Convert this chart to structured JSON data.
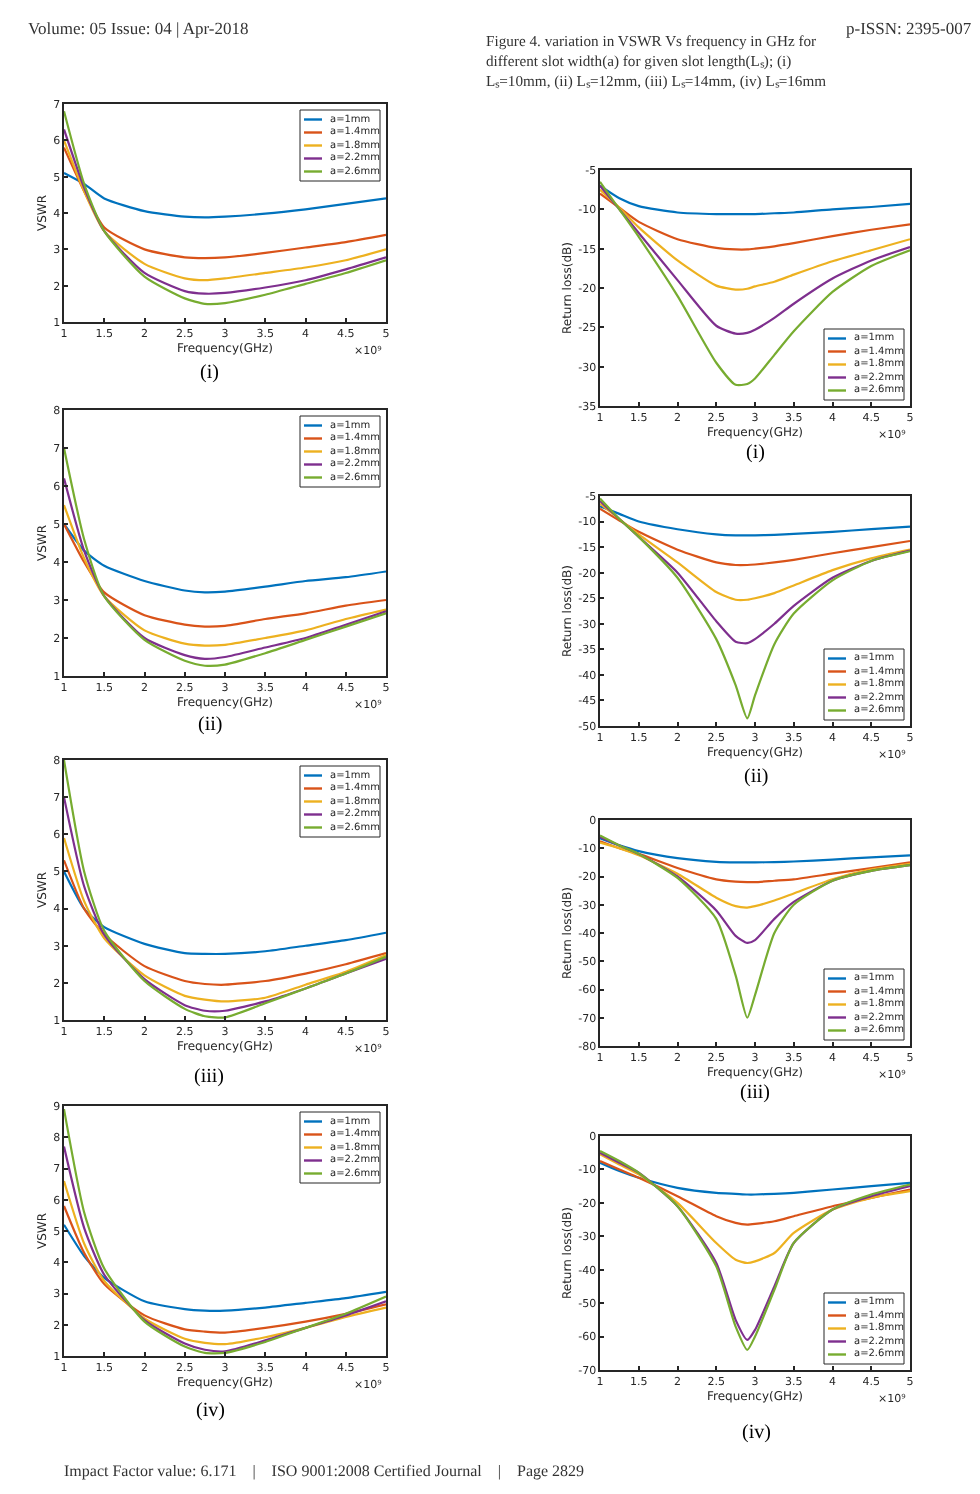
{
  "chart_data": [
    {
      "type": "line",
      "xlabel": "Frequency(GHz)",
      "ylabel": "VSWR",
      "legend": "top right",
      "x": [
        1,
        1.25,
        1.5,
        2,
        2.5,
        2.75,
        3,
        3.5,
        4,
        4.5,
        5
      ],
      "xlim": [
        1,
        5
      ],
      "xticks": [
        1,
        1.5,
        2,
        2.5,
        3,
        3.5,
        4,
        4.5,
        5
      ],
      "ylim": [
        1,
        7
      ],
      "yticks": [
        1,
        2,
        3,
        4,
        5,
        6,
        7
      ],
      "annotations": [
        "×10⁹",
        "(i)",
        "Volume: 05 Issue: 04 | Apr-2018",
        "p-ISSN: 2395-007"
      ],
      "series": [
        {
          "name": "a=1mm",
          "color": "#0072bd",
          "values": [
            5.1,
            4.8,
            4.4,
            4.05,
            3.9,
            3.88,
            3.9,
            3.98,
            4.1,
            4.25,
            4.4
          ]
        },
        {
          "name": "a=1.4mm",
          "color": "#d95319",
          "values": [
            5.8,
            4.6,
            3.6,
            3.0,
            2.78,
            2.76,
            2.78,
            2.9,
            3.05,
            3.2,
            3.4
          ]
        },
        {
          "name": "a=1.8mm",
          "color": "#edb120",
          "values": [
            6.0,
            4.6,
            3.5,
            2.6,
            2.2,
            2.15,
            2.2,
            2.35,
            2.5,
            2.7,
            3.0
          ]
        },
        {
          "name": "a=2.2mm",
          "color": "#7e2f8e",
          "values": [
            6.3,
            4.7,
            3.5,
            2.35,
            1.85,
            1.78,
            1.8,
            1.95,
            2.15,
            2.45,
            2.78
          ]
        },
        {
          "name": "a=2.6mm",
          "color": "#77ac30",
          "values": [
            6.8,
            4.8,
            3.5,
            2.25,
            1.65,
            1.5,
            1.52,
            1.75,
            2.05,
            2.35,
            2.7
          ]
        }
      ]
    },
    {
      "type": "line",
      "xlabel": "Frequency(GHz)",
      "ylabel": "VSWR",
      "legend": "top right",
      "x": [
        1,
        1.25,
        1.5,
        2,
        2.5,
        2.75,
        3,
        3.5,
        4,
        4.5,
        5
      ],
      "xlim": [
        1,
        5
      ],
      "xticks": [
        1,
        1.5,
        2,
        2.5,
        3,
        3.5,
        4,
        4.5,
        5
      ],
      "ylim": [
        1,
        8
      ],
      "yticks": [
        1,
        2,
        3,
        4,
        5,
        6,
        7,
        8
      ],
      "annotations": [
        "×10⁹",
        "(ii)"
      ],
      "series": [
        {
          "name": "a=1mm",
          "color": "#0072bd",
          "values": [
            5.0,
            4.3,
            3.9,
            3.5,
            3.25,
            3.2,
            3.22,
            3.35,
            3.5,
            3.6,
            3.75
          ]
        },
        {
          "name": "a=1.4mm",
          "color": "#d95319",
          "values": [
            5.0,
            4.0,
            3.2,
            2.6,
            2.35,
            2.3,
            2.32,
            2.5,
            2.65,
            2.85,
            3.0
          ]
        },
        {
          "name": "a=1.8mm",
          "color": "#edb120",
          "values": [
            5.5,
            4.1,
            3.1,
            2.2,
            1.85,
            1.8,
            1.82,
            2.0,
            2.2,
            2.5,
            2.75
          ]
        },
        {
          "name": "a=2.2mm",
          "color": "#7e2f8e",
          "values": [
            6.2,
            4.3,
            3.1,
            2.0,
            1.55,
            1.45,
            1.5,
            1.75,
            2.0,
            2.35,
            2.7
          ]
        },
        {
          "name": "a=2.6mm",
          "color": "#77ac30",
          "values": [
            7.0,
            4.6,
            3.1,
            1.95,
            1.4,
            1.27,
            1.3,
            1.6,
            1.95,
            2.3,
            2.65
          ]
        }
      ]
    },
    {
      "type": "line",
      "xlabel": "Frequency(GHz)",
      "ylabel": "VSWR",
      "legend": "top right",
      "x": [
        1,
        1.25,
        1.5,
        2,
        2.5,
        2.75,
        3,
        3.5,
        4,
        4.5,
        5
      ],
      "xlim": [
        1,
        5
      ],
      "xticks": [
        1,
        1.5,
        2,
        2.5,
        3,
        3.5,
        4,
        4.5,
        5
      ],
      "ylim": [
        1,
        8
      ],
      "yticks": [
        1,
        2,
        3,
        4,
        5,
        6,
        7,
        8
      ],
      "annotations": [
        "×10⁹",
        "(iii)"
      ],
      "series": [
        {
          "name": "a=1mm",
          "color": "#0072bd",
          "values": [
            5.0,
            4.0,
            3.5,
            3.05,
            2.8,
            2.78,
            2.78,
            2.85,
            3.0,
            3.15,
            3.35
          ]
        },
        {
          "name": "a=1.4mm",
          "color": "#d95319",
          "values": [
            5.3,
            4.0,
            3.3,
            2.45,
            2.05,
            1.97,
            1.95,
            2.05,
            2.25,
            2.5,
            2.8
          ]
        },
        {
          "name": "a=1.8mm",
          "color": "#edb120",
          "values": [
            5.9,
            4.2,
            3.2,
            2.2,
            1.65,
            1.55,
            1.5,
            1.6,
            1.95,
            2.3,
            2.75
          ]
        },
        {
          "name": "a=2.2mm",
          "color": "#7e2f8e",
          "values": [
            7.0,
            4.6,
            3.3,
            2.1,
            1.4,
            1.25,
            1.25,
            1.5,
            1.85,
            2.25,
            2.65
          ]
        },
        {
          "name": "a=2.6mm",
          "color": "#77ac30",
          "values": [
            8.0,
            5.0,
            3.4,
            2.05,
            1.3,
            1.1,
            1.07,
            1.45,
            1.85,
            2.25,
            2.7
          ]
        }
      ]
    },
    {
      "type": "line",
      "xlabel": "Frequency(GHz)",
      "ylabel": "VSWR",
      "legend": "top right",
      "x": [
        1,
        1.25,
        1.5,
        2,
        2.5,
        2.75,
        3,
        3.5,
        4,
        4.5,
        5
      ],
      "xlim": [
        1,
        5
      ],
      "xticks": [
        1,
        1.5,
        2,
        2.5,
        3,
        3.5,
        4,
        4.5,
        5
      ],
      "ylim": [
        1,
        9
      ],
      "yticks": [
        1,
        2,
        3,
        4,
        5,
        6,
        7,
        8,
        9
      ],
      "annotations": [
        "×10⁹",
        "(iv)"
      ],
      "series": [
        {
          "name": "a=1mm",
          "color": "#0072bd",
          "values": [
            5.2,
            4.2,
            3.5,
            2.75,
            2.5,
            2.45,
            2.45,
            2.55,
            2.7,
            2.85,
            3.05
          ]
        },
        {
          "name": "a=1.4mm",
          "color": "#d95319",
          "values": [
            5.8,
            4.3,
            3.3,
            2.3,
            1.85,
            1.78,
            1.75,
            1.9,
            2.1,
            2.35,
            2.65
          ]
        },
        {
          "name": "a=1.8mm",
          "color": "#edb120",
          "values": [
            6.6,
            4.6,
            3.4,
            2.2,
            1.55,
            1.42,
            1.38,
            1.6,
            1.9,
            2.25,
            2.55
          ]
        },
        {
          "name": "a=2.2mm",
          "color": "#7e2f8e",
          "values": [
            7.7,
            5.1,
            3.6,
            2.15,
            1.4,
            1.2,
            1.15,
            1.5,
            1.9,
            2.3,
            2.75
          ]
        },
        {
          "name": "a=2.6mm",
          "color": "#77ac30",
          "values": [
            8.9,
            5.6,
            3.8,
            2.1,
            1.3,
            1.1,
            1.1,
            1.45,
            1.9,
            2.35,
            2.9
          ]
        }
      ]
    },
    {
      "type": "line",
      "xlabel": "Frequency(GHz)",
      "ylabel": "Return loss(dB)",
      "legend": "bottom right",
      "x": [
        1,
        1.25,
        1.5,
        2,
        2.5,
        2.75,
        2.9,
        3,
        3.25,
        3.5,
        4,
        4.5,
        5
      ],
      "xlim": [
        1,
        5
      ],
      "xticks": [
        1,
        1.5,
        2,
        2.5,
        3,
        3.5,
        4,
        4.5,
        5
      ],
      "ylim": [
        -35,
        -5
      ],
      "yticks": [
        -35,
        -30,
        -25,
        -20,
        -15,
        -10,
        -5
      ],
      "annotations": [
        "×10⁹",
        "(i)",
        "Figure 4. variation in VSWR Vs frequency in GHz for different slot width(a) for given slot length(Lₛ); (i) Lₛ=10mm, (ii) Lₛ=12mm, (iii) Lₛ=14mm, (iv) Lₛ=16mm"
      ],
      "series": [
        {
          "name": "a=1mm",
          "color": "#0072bd",
          "values": [
            -7,
            -8.6,
            -9.6,
            -10.4,
            -10.6,
            -10.6,
            -10.6,
            -10.6,
            -10.5,
            -10.4,
            -10.0,
            -9.7,
            -9.3
          ]
        },
        {
          "name": "a=1.4mm",
          "color": "#d95319",
          "values": [
            -8,
            -9.8,
            -11.6,
            -13.8,
            -14.9,
            -15.1,
            -15.1,
            -15.0,
            -14.7,
            -14.3,
            -13.4,
            -12.6,
            -11.9
          ]
        },
        {
          "name": "a=1.8mm",
          "color": "#edb120",
          "values": [
            -7.5,
            -9.8,
            -12.3,
            -16.5,
            -19.7,
            -20.2,
            -20.1,
            -19.8,
            -19.2,
            -18.3,
            -16.6,
            -15.2,
            -13.8
          ]
        },
        {
          "name": "a=2.2mm",
          "color": "#7e2f8e",
          "values": [
            -7,
            -10,
            -13,
            -19,
            -24.8,
            -25.8,
            -25.7,
            -25.3,
            -23.8,
            -22,
            -18.8,
            -16.5,
            -14.8
          ]
        },
        {
          "name": "a=2.6mm",
          "color": "#77ac30",
          "values": [
            -6.5,
            -10,
            -13.5,
            -21,
            -29.5,
            -32.3,
            -32.2,
            -31.5,
            -28.5,
            -25.5,
            -20.5,
            -17.2,
            -15.2
          ]
        }
      ]
    },
    {
      "type": "line",
      "xlabel": "Frequency(GHz)",
      "ylabel": "Return loss(dB)",
      "legend": "bottom right",
      "x": [
        1,
        1.25,
        1.5,
        2,
        2.5,
        2.75,
        2.9,
        3,
        3.25,
        3.5,
        4,
        4.5,
        5
      ],
      "xlim": [
        1,
        5
      ],
      "xticks": [
        1,
        1.5,
        2,
        2.5,
        3,
        3.5,
        4,
        4.5,
        5
      ],
      "ylim": [
        -50,
        -5
      ],
      "yticks": [
        -50,
        -45,
        -40,
        -35,
        -30,
        -25,
        -20,
        -15,
        -10,
        -5
      ],
      "annotations": [
        "×10⁹",
        "(ii)"
      ],
      "series": [
        {
          "name": "a=1mm",
          "color": "#0072bd",
          "values": [
            -7,
            -8.5,
            -10,
            -11.5,
            -12.5,
            -12.7,
            -12.7,
            -12.7,
            -12.6,
            -12.4,
            -12.0,
            -11.5,
            -11.0
          ]
        },
        {
          "name": "a=1.4mm",
          "color": "#d95319",
          "values": [
            -7.5,
            -9.8,
            -12,
            -15.5,
            -18,
            -18.5,
            -18.5,
            -18.4,
            -18,
            -17.5,
            -16.2,
            -15,
            -13.8
          ]
        },
        {
          "name": "a=1.8mm",
          "color": "#edb120",
          "values": [
            -6.5,
            -9.5,
            -12.5,
            -18,
            -23.8,
            -25.3,
            -25.3,
            -25,
            -24,
            -22.5,
            -19.5,
            -17.2,
            -15.5
          ]
        },
        {
          "name": "a=2.2mm",
          "color": "#7e2f8e",
          "values": [
            -6,
            -9.5,
            -13,
            -20,
            -29.5,
            -33.5,
            -33.8,
            -33,
            -30,
            -26.5,
            -21,
            -17.7,
            -15.7
          ]
        },
        {
          "name": "a=2.6mm",
          "color": "#77ac30",
          "values": [
            -5.5,
            -9.5,
            -13,
            -21,
            -33,
            -42,
            -48.5,
            -44,
            -34,
            -28,
            -21.5,
            -17.7,
            -15.8
          ]
        }
      ]
    },
    {
      "type": "line",
      "xlabel": "Frequency(GHz)",
      "ylabel": "Return loss(dB)",
      "legend": "bottom right",
      "x": [
        1,
        1.25,
        1.5,
        2,
        2.5,
        2.75,
        2.9,
        3,
        3.25,
        3.5,
        4,
        4.5,
        5
      ],
      "xlim": [
        1,
        5
      ],
      "xticks": [
        1,
        1.5,
        2,
        2.5,
        3,
        3.5,
        4,
        4.5,
        5
      ],
      "ylim": [
        -80,
        0
      ],
      "yticks": [
        -80,
        -70,
        -60,
        -50,
        -40,
        -30,
        -20,
        -10,
        0
      ],
      "annotations": [
        "×10⁹",
        "(iii)"
      ],
      "series": [
        {
          "name": "a=1mm",
          "color": "#0072bd",
          "values": [
            -6.5,
            -9,
            -11,
            -13.5,
            -14.8,
            -15,
            -15,
            -15,
            -14.9,
            -14.7,
            -14,
            -13.2,
            -12.5
          ]
        },
        {
          "name": "a=1.4mm",
          "color": "#d95319",
          "values": [
            -7.5,
            -10,
            -12,
            -17,
            -21,
            -21.8,
            -22,
            -22,
            -21.5,
            -21,
            -19,
            -17,
            -15
          ]
        },
        {
          "name": "a=1.8mm",
          "color": "#edb120",
          "values": [
            -8,
            -10,
            -12.5,
            -19,
            -27.5,
            -30.5,
            -31,
            -30.5,
            -28.5,
            -26,
            -21,
            -17.5,
            -15.5
          ]
        },
        {
          "name": "a=2.2mm",
          "color": "#7e2f8e",
          "values": [
            -6,
            -9,
            -12,
            -20,
            -32,
            -41,
            -43.5,
            -42.5,
            -35,
            -29,
            -21.5,
            -18,
            -16
          ]
        },
        {
          "name": "a=2.6mm",
          "color": "#77ac30",
          "values": [
            -5.5,
            -9,
            -12,
            -20.5,
            -35,
            -55,
            -70,
            -62,
            -40,
            -30,
            -21.5,
            -18,
            -16
          ]
        }
      ]
    },
    {
      "type": "line",
      "xlabel": "Frequency(GHz)",
      "ylabel": "Return loss(dB)",
      "legend": "bottom right",
      "x": [
        1,
        1.25,
        1.5,
        2,
        2.5,
        2.75,
        2.9,
        3,
        3.25,
        3.5,
        4,
        4.5,
        5
      ],
      "xlim": [
        1,
        5
      ],
      "xticks": [
        1,
        1.5,
        2,
        2.5,
        3,
        3.5,
        4,
        4.5,
        5
      ],
      "ylim": [
        -70,
        0
      ],
      "yticks": [
        -70,
        -60,
        -50,
        -40,
        -30,
        -20,
        -10,
        0
      ],
      "annotations": [
        "×10⁹",
        "(iv)",
        "Impact Factor value: 6.171    |    ISO 9001:2008 Certified Journal    |    Page 2829"
      ],
      "series": [
        {
          "name": "a=1mm",
          "color": "#0072bd",
          "values": [
            -8,
            -10.5,
            -12.5,
            -15.5,
            -17,
            -17.3,
            -17.5,
            -17.5,
            -17.3,
            -17,
            -16,
            -15,
            -14
          ]
        },
        {
          "name": "a=1.4mm",
          "color": "#d95319",
          "values": [
            -7.5,
            -10,
            -12.5,
            -18,
            -24,
            -26,
            -26.5,
            -26.3,
            -25.5,
            -24,
            -21,
            -18.5,
            -16
          ]
        },
        {
          "name": "a=1.8mm",
          "color": "#edb120",
          "values": [
            -5.5,
            -8.5,
            -11.5,
            -20,
            -32,
            -37,
            -38,
            -37.5,
            -35,
            -29,
            -22,
            -18.5,
            -16.5
          ]
        },
        {
          "name": "a=2.2mm",
          "color": "#7e2f8e",
          "values": [
            -5,
            -8,
            -11,
            -21,
            -38,
            -55,
            -61,
            -58,
            -45,
            -32,
            -22,
            -18,
            -15
          ]
        },
        {
          "name": "a=2.6mm",
          "color": "#77ac30",
          "values": [
            -4.5,
            -7.5,
            -11,
            -21,
            -39,
            -57,
            -64,
            -60,
            -46,
            -32,
            -22,
            -17.5,
            -14.5
          ]
        }
      ]
    }
  ]
}
